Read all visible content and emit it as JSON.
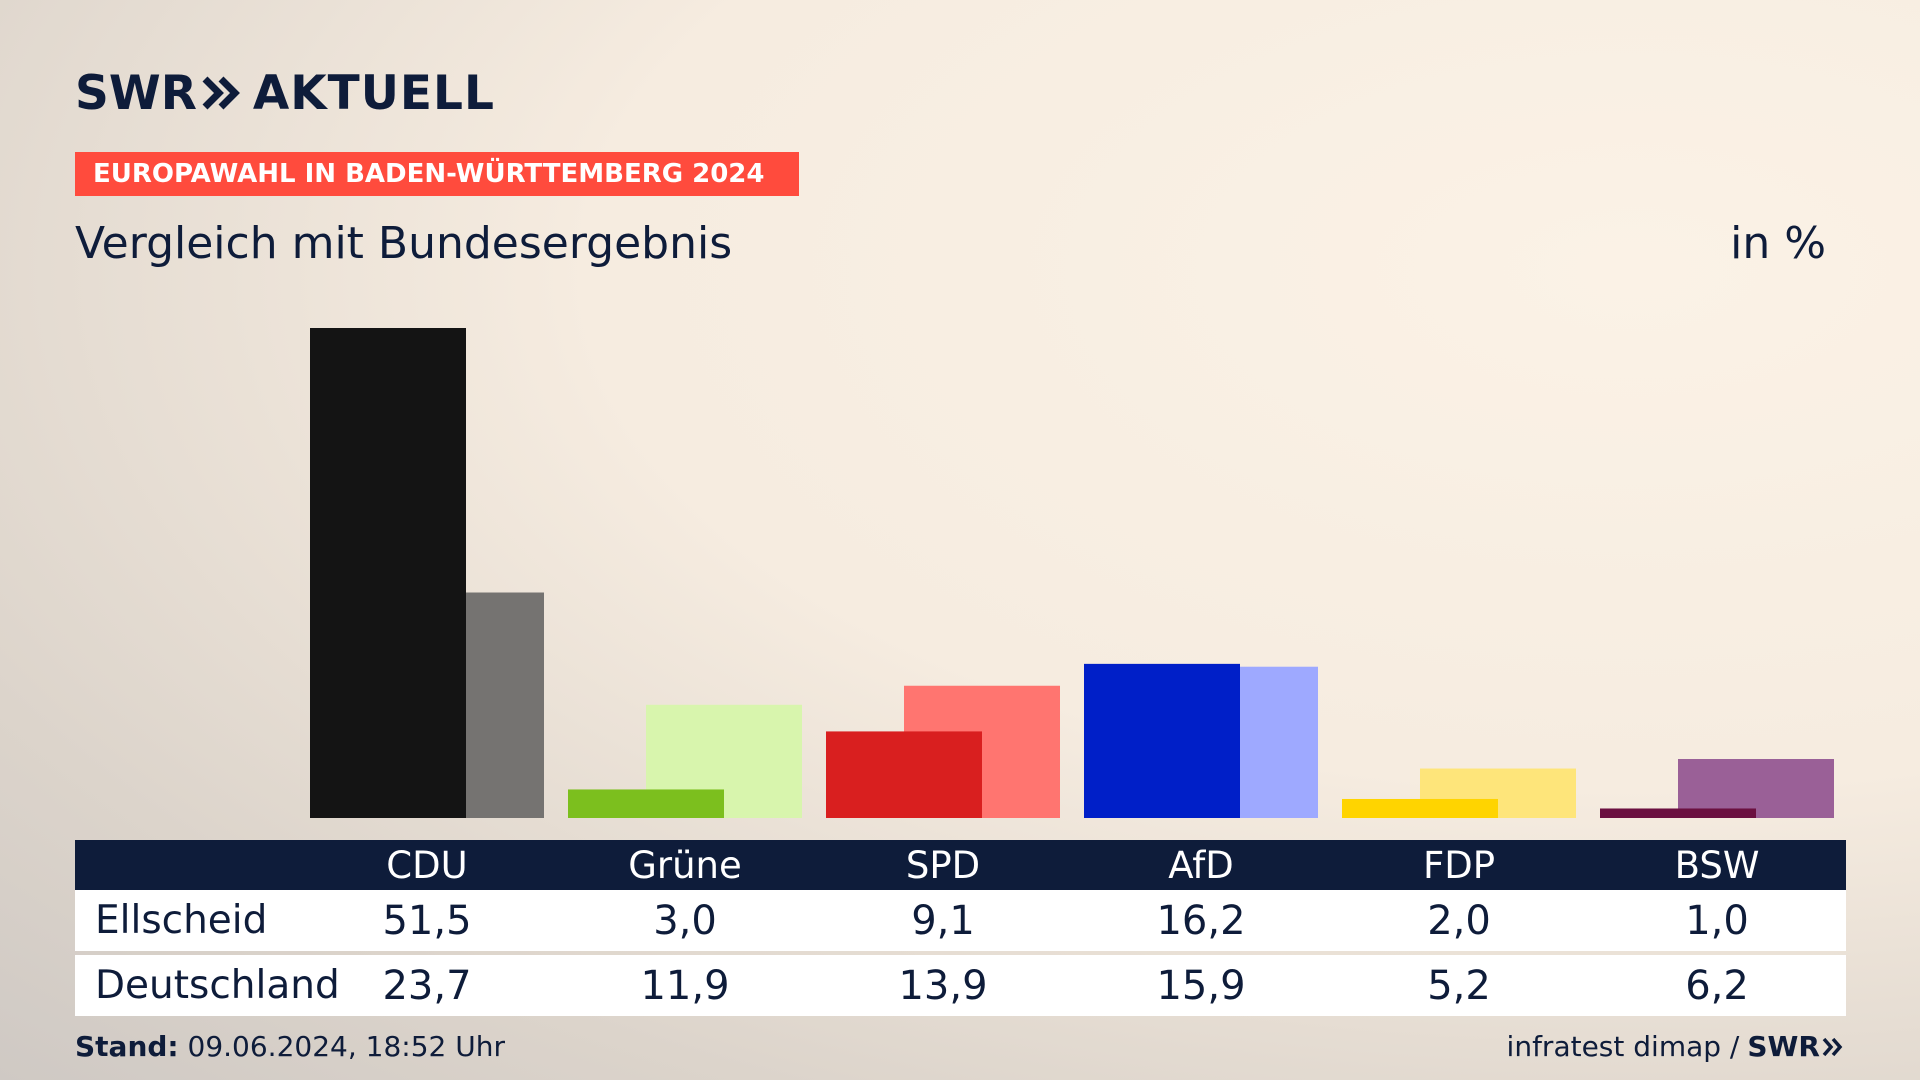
{
  "logo": {
    "brand": "SWR",
    "product": "AKTUELL"
  },
  "banner": "EUROPAWAHL IN BADEN-WÜRTTEMBERG 2024",
  "subtitle": "Vergleich mit Bundesergebnis",
  "unit": "in %",
  "table": {
    "rows": [
      {
        "label": "Ellscheid",
        "values": [
          "51,5",
          "3,0",
          "9,1",
          "16,2",
          "2,0",
          "1,0"
        ]
      },
      {
        "label": "Deutschland",
        "values": [
          "23,7",
          "11,9",
          "13,9",
          "15,9",
          "5,2",
          "6,2"
        ]
      }
    ]
  },
  "footer": {
    "stand_label": "Stand:",
    "stand_value": " 09.06.2024, 18:52 Uhr",
    "source": "infratest dimap /",
    "source_brand": "SWR"
  },
  "colors": {
    "navy": "#0e1c3a",
    "banner": "#ff4b3d"
  },
  "chart_data": {
    "type": "bar",
    "categories": [
      "CDU",
      "Grüne",
      "SPD",
      "AfD",
      "FDP",
      "BSW"
    ],
    "series": [
      {
        "name": "Ellscheid",
        "values": [
          51.5,
          3.0,
          9.1,
          16.2,
          2.0,
          1.0
        ]
      },
      {
        "name": "Deutschland",
        "values": [
          23.7,
          11.9,
          13.9,
          15.9,
          5.2,
          6.2
        ]
      }
    ],
    "ylim": [
      0,
      51.5
    ],
    "colors_primary": [
      "#141414",
      "#7cbf1e",
      "#d91f1f",
      "#001fc8",
      "#ffd400",
      "#6b1040"
    ],
    "colors_secondary": [
      "#757371",
      "#d8f5ad",
      "#ff7570",
      "#9ea9ff",
      "#fee57a",
      "#9a6097"
    ]
  }
}
